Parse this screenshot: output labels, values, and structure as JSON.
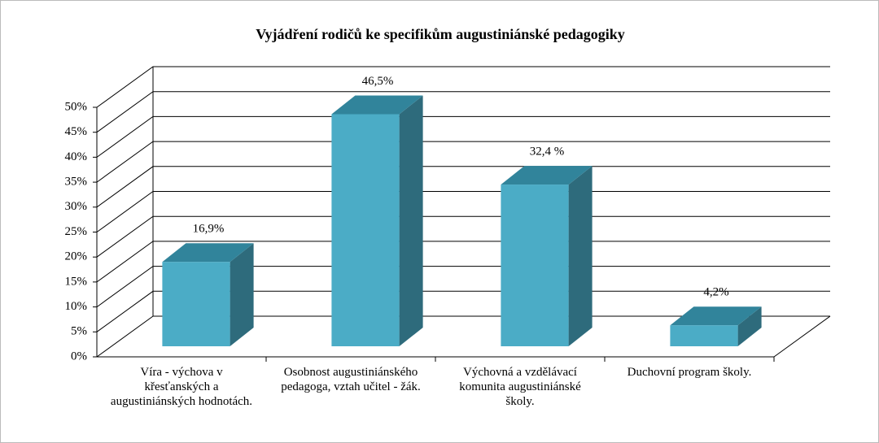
{
  "chart_data": {
    "type": "bar3d",
    "title": "Vyjádření rodičů ke specifikům augustiniánské pedagogiky",
    "categories": [
      "Víra - výchova v křesťanských a augustiniánských hodnotách.",
      "Osobnost augustiniánského pedagoga, vztah učitel - žák.",
      "Výchovná a vzdělávací komunita augustiniánské školy.",
      "Duchovní program školy."
    ],
    "values": [
      16.9,
      46.5,
      32.4,
      4.2
    ],
    "value_labels": [
      "16,9%",
      "46,5%",
      "32,4 %",
      "4,2%"
    ],
    "color": "#4bacc6",
    "ylim": [
      0,
      50
    ],
    "yticks": [
      {
        "value": 0,
        "label": "0%"
      },
      {
        "value": 5,
        "label": "5%"
      },
      {
        "value": 10,
        "label": "10%"
      },
      {
        "value": 15,
        "label": "15%"
      },
      {
        "value": 20,
        "label": "20%"
      },
      {
        "value": 25,
        "label": "25%"
      },
      {
        "value": 30,
        "label": "30%"
      },
      {
        "value": 35,
        "label": "35%"
      },
      {
        "value": 40,
        "label": "40%"
      },
      {
        "value": 45,
        "label": "45%"
      },
      {
        "value": 50,
        "label": "50%"
      }
    ],
    "grid": true
  }
}
